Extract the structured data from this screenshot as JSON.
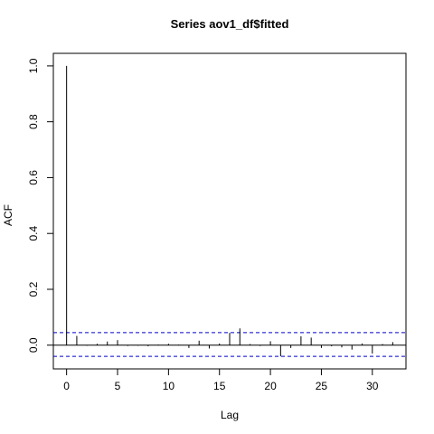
{
  "chart_data": {
    "type": "bar",
    "title": "Series  aov1_df$fitted",
    "xlabel": "Lag",
    "ylabel": "ACF",
    "xlim": [
      -1.3,
      33.3
    ],
    "ylim": [
      -0.085,
      1.045
    ],
    "x_ticks": [
      0,
      5,
      10,
      15,
      20,
      25,
      30
    ],
    "x_tick_labels": [
      "0",
      "5",
      "10",
      "15",
      "20",
      "25",
      "30"
    ],
    "y_ticks": [
      0.0,
      0.2,
      0.4,
      0.6,
      0.8,
      1.0
    ],
    "y_tick_labels": [
      "0.0",
      "0.2",
      "0.4",
      "0.6",
      "0.8",
      "1.0"
    ],
    "lags": [
      0,
      1,
      2,
      3,
      4,
      5,
      6,
      7,
      8,
      9,
      10,
      11,
      12,
      13,
      14,
      15,
      16,
      17,
      18,
      19,
      20,
      21,
      22,
      23,
      24,
      25,
      26,
      27,
      28,
      29,
      30,
      31,
      32
    ],
    "acf": [
      1.0,
      0.033,
      -0.002,
      0.005,
      0.013,
      0.018,
      -0.003,
      -0.002,
      -0.004,
      0.002,
      0.005,
      0.002,
      -0.01,
      0.016,
      -0.012,
      0.006,
      0.044,
      0.06,
      0.004,
      -0.003,
      0.014,
      -0.04,
      -0.01,
      0.032,
      0.027,
      -0.01,
      -0.004,
      -0.008,
      -0.016,
      0.006,
      -0.03,
      0.004,
      0.011
    ],
    "ci_upper": 0.045,
    "ci_lower": -0.04,
    "colors": {
      "bars": "#000000",
      "ci": "#0000cc",
      "zero_line": "#000000",
      "axes": "#000000"
    }
  }
}
